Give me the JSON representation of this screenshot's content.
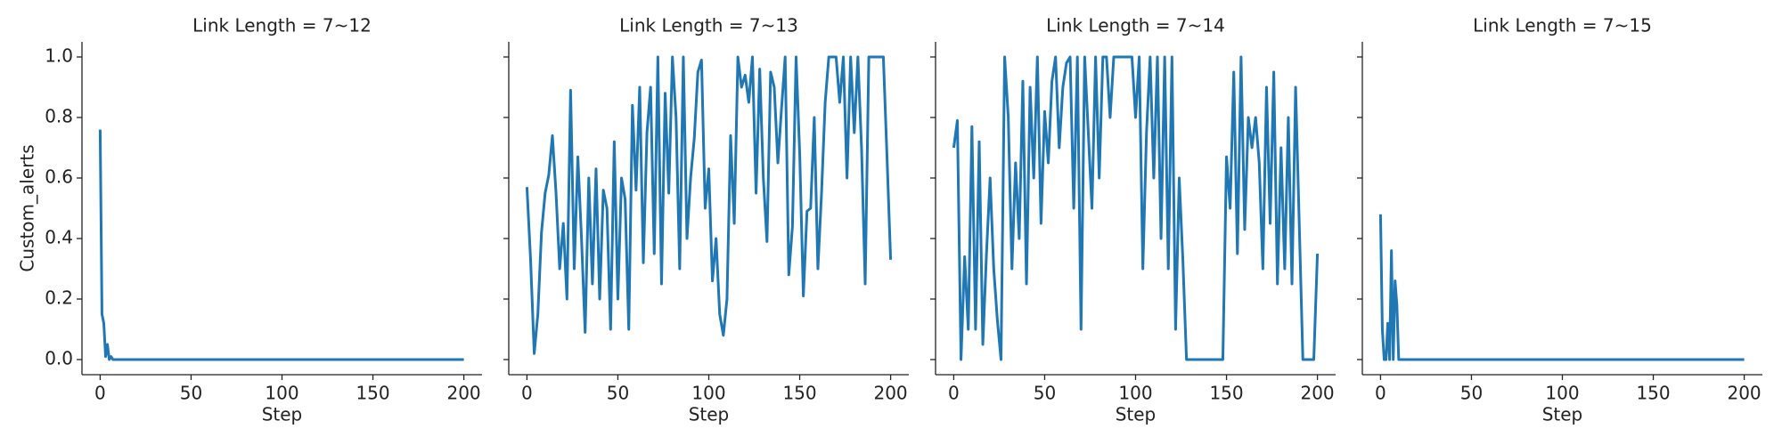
{
  "chart_data": [
    {
      "type": "line",
      "title": "Link Length = 7~12",
      "xlabel": "Step",
      "ylabel": "Custom_alerts",
      "color": "#1f77b4",
      "x": [
        0,
        1,
        2,
        3,
        4,
        5,
        6,
        7,
        8,
        200
      ],
      "values": [
        0.76,
        0.15,
        0.12,
        0.01,
        0.05,
        0.0,
        0.01,
        0.0,
        0.0,
        0.0
      ],
      "xlim": [
        -10,
        210
      ],
      "xticks": [
        0,
        50,
        100,
        150,
        200
      ],
      "ylim": [
        -0.05,
        1.05
      ],
      "yticks": [
        {
          "value": 0,
          "label": "0.0"
        },
        0.2,
        0.4,
        0.6,
        0.8,
        {
          "value": 1,
          "label": "1.0"
        }
      ]
    },
    {
      "type": "line",
      "title": "Link Length = 7~13",
      "xlabel": "Step",
      "color": "#1f77b4",
      "sharey": true,
      "x": [
        0,
        2,
        4,
        6,
        8,
        10,
        12,
        14,
        16,
        18,
        20,
        22,
        24,
        26,
        28,
        30,
        32,
        34,
        36,
        38,
        40,
        42,
        44,
        46,
        48,
        50,
        52,
        54,
        56,
        58,
        60,
        62,
        64,
        66,
        68,
        70,
        72,
        74,
        76,
        78,
        80,
        82,
        84,
        86,
        88,
        90,
        92,
        94,
        96,
        98,
        100,
        102,
        104,
        106,
        108,
        110,
        112,
        114,
        116,
        118,
        120,
        122,
        124,
        126,
        128,
        130,
        132,
        134,
        136,
        138,
        140,
        142,
        144,
        146,
        148,
        150,
        152,
        154,
        156,
        158,
        160,
        162,
        164,
        166,
        168,
        170,
        172,
        174,
        176,
        178,
        180,
        182,
        184,
        186,
        188,
        190,
        192,
        194,
        196,
        198,
        200
      ],
      "values": [
        0.57,
        0.33,
        0.02,
        0.15,
        0.42,
        0.55,
        0.61,
        0.74,
        0.55,
        0.3,
        0.45,
        0.2,
        0.89,
        0.3,
        0.67,
        0.4,
        0.09,
        0.6,
        0.25,
        0.63,
        0.2,
        0.56,
        0.5,
        0.1,
        0.72,
        0.2,
        0.6,
        0.53,
        0.1,
        0.84,
        0.56,
        0.9,
        0.32,
        0.75,
        0.9,
        0.35,
        1.0,
        0.25,
        0.88,
        0.55,
        1.0,
        0.8,
        0.3,
        1.0,
        0.4,
        0.6,
        0.73,
        0.95,
        0.99,
        0.5,
        0.63,
        0.26,
        0.4,
        0.15,
        0.08,
        0.2,
        0.74,
        0.45,
        1.0,
        0.9,
        0.94,
        0.85,
        1.0,
        0.55,
        0.96,
        0.6,
        0.39,
        0.95,
        0.9,
        0.65,
        0.83,
        1.0,
        0.28,
        0.44,
        1.0,
        0.68,
        0.21,
        0.49,
        0.5,
        0.8,
        0.3,
        0.55,
        0.85,
        1.0,
        1.0,
        1.0,
        0.85,
        1.0,
        0.6,
        1.0,
        0.75,
        1.0,
        0.7,
        0.25,
        1.0,
        1.0,
        1.0,
        1.0,
        1.0,
        0.67,
        0.33
      ],
      "xlim": [
        -10,
        210
      ],
      "xticks": [
        0,
        50,
        100,
        150,
        200
      ],
      "ylim": [
        -0.05,
        1.05
      ]
    },
    {
      "type": "line",
      "title": "Link Length = 7~14",
      "xlabel": "Step",
      "color": "#1f77b4",
      "sharey": true,
      "x": [
        0,
        2,
        4,
        6,
        8,
        10,
        12,
        14,
        16,
        18,
        20,
        22,
        24,
        26,
        28,
        30,
        32,
        34,
        36,
        38,
        40,
        42,
        44,
        46,
        48,
        50,
        52,
        54,
        56,
        58,
        60,
        62,
        64,
        66,
        68,
        70,
        72,
        74,
        76,
        78,
        80,
        82,
        84,
        86,
        88,
        90,
        92,
        94,
        96,
        98,
        100,
        102,
        104,
        106,
        108,
        110,
        112,
        114,
        116,
        118,
        120,
        122,
        124,
        126,
        128,
        130,
        132,
        134,
        136,
        138,
        140,
        142,
        144,
        146,
        148,
        150,
        152,
        154,
        156,
        158,
        160,
        162,
        164,
        166,
        168,
        170,
        172,
        174,
        176,
        178,
        180,
        182,
        184,
        186,
        188,
        190,
        192,
        194,
        196,
        198,
        200
      ],
      "values": [
        0.7,
        0.79,
        0.0,
        0.34,
        0.1,
        0.77,
        0.1,
        0.72,
        0.05,
        0.35,
        0.6,
        0.3,
        0.13,
        0.0,
        1.0,
        0.8,
        0.3,
        0.65,
        0.4,
        0.92,
        0.25,
        0.9,
        0.6,
        1.0,
        0.45,
        0.82,
        0.65,
        0.92,
        1.0,
        0.7,
        0.9,
        0.98,
        1.0,
        0.5,
        1.0,
        0.1,
        1.0,
        0.75,
        0.5,
        1.0,
        0.6,
        1.0,
        1.0,
        0.8,
        1.0,
        1.0,
        1.0,
        1.0,
        1.0,
        1.0,
        0.8,
        1.0,
        0.3,
        0.75,
        1.0,
        0.6,
        1.0,
        0.4,
        1.0,
        0.3,
        1.0,
        0.1,
        0.6,
        0.33,
        0.0,
        0.0,
        0.0,
        0.0,
        0.0,
        0.0,
        0.0,
        0.0,
        0.0,
        0.0,
        0.0,
        0.67,
        0.5,
        0.95,
        0.35,
        1.0,
        0.43,
        0.8,
        0.7,
        0.8,
        0.65,
        0.3,
        0.9,
        0.45,
        0.95,
        0.25,
        0.7,
        0.3,
        0.8,
        0.25,
        0.9,
        0.45,
        0.0,
        0.0,
        0.0,
        0.0,
        0.35
      ],
      "xlim": [
        -10,
        210
      ],
      "xticks": [
        0,
        50,
        100,
        150,
        200
      ],
      "ylim": [
        -0.05,
        1.05
      ]
    },
    {
      "type": "line",
      "title": "Link Length = 7~15",
      "xlabel": "Step",
      "color": "#1f77b4",
      "sharey": true,
      "x": [
        0,
        1,
        2,
        3,
        4,
        5,
        6,
        7,
        8,
        9,
        10,
        11,
        12,
        200
      ],
      "values": [
        0.48,
        0.1,
        0.0,
        0.0,
        0.12,
        0.0,
        0.36,
        0.0,
        0.26,
        0.18,
        0.0,
        0.0,
        0.0,
        0.0
      ],
      "xlim": [
        -10,
        210
      ],
      "xticks": [
        0,
        50,
        100,
        150,
        200
      ],
      "ylim": [
        -0.05,
        1.05
      ]
    }
  ]
}
